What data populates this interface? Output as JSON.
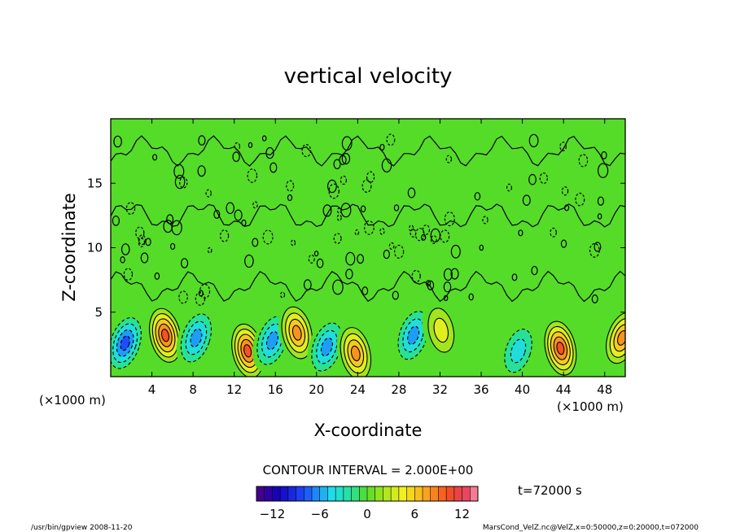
{
  "chart_data": {
    "type": "heatmap",
    "title": "vertical velocity",
    "xlabel": "X-coordinate",
    "ylabel": "Z-coordinate",
    "x_unit_left": "(×1000 m)",
    "x_unit_right": "(×1000 m)",
    "xlim": [
      0,
      50
    ],
    "ylim": [
      0,
      20
    ],
    "x_ticks": [
      4,
      8,
      12,
      16,
      20,
      24,
      28,
      32,
      36,
      40,
      44,
      48
    ],
    "y_ticks": [
      5,
      10,
      15
    ],
    "contour_interval_text": "CONTOUR INTERVAL = 2.000E+00",
    "time_text": "t=72000 s",
    "colorbar": {
      "range": [
        -14,
        14
      ],
      "ticks": [
        -12,
        -6,
        0,
        6,
        12
      ],
      "tick_labels": [
        "−12",
        "−6",
        "0",
        "6",
        "12"
      ]
    },
    "cells": [
      {
        "x": 1.4,
        "z": 2.6,
        "value": -8
      },
      {
        "x": 5.3,
        "z": 3.2,
        "value": 10
      },
      {
        "x": 8.3,
        "z": 3.0,
        "value": -6
      },
      {
        "x": 13.3,
        "z": 2.0,
        "value": 10
      },
      {
        "x": 15.7,
        "z": 2.8,
        "value": -6
      },
      {
        "x": 18.1,
        "z": 3.4,
        "value": 8
      },
      {
        "x": 21.0,
        "z": 2.3,
        "value": -6
      },
      {
        "x": 23.8,
        "z": 1.8,
        "value": 8
      },
      {
        "x": 29.4,
        "z": 3.2,
        "value": -6
      },
      {
        "x": 32.1,
        "z": 3.6,
        "value": 4
      },
      {
        "x": 39.6,
        "z": 2.0,
        "value": -4
      },
      {
        "x": 43.7,
        "z": 2.2,
        "value": 10
      },
      {
        "x": 49.7,
        "z": 3.0,
        "value": 8
      }
    ]
  },
  "footer": {
    "left": "/usr/bin/gpview  2008-11-20",
    "right": "MarsCond_VelZ.nc@VelZ,x=0:50000,z=0:20000,t=072000"
  }
}
